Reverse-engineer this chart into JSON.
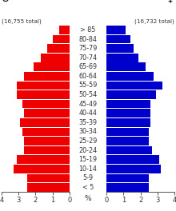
{
  "age_groups": [
    "< 5",
    "5-9",
    "10-14",
    "15-19",
    "20-24",
    "25-29",
    "30-34",
    "35-39",
    "40-44",
    "45-49",
    "50-54",
    "55-59",
    "60-64",
    "65-69",
    "70-74",
    "75-79",
    "80-84",
    "> 85"
  ],
  "male_pct": [
    2.5,
    2.5,
    3.3,
    3.1,
    2.7,
    2.7,
    2.8,
    2.9,
    2.7,
    2.8,
    3.1,
    3.1,
    2.7,
    2.1,
    1.7,
    1.3,
    1.0,
    0.6
  ],
  "female_pct": [
    2.5,
    2.5,
    3.2,
    3.1,
    2.7,
    2.5,
    2.5,
    2.6,
    2.6,
    2.6,
    2.9,
    3.3,
    2.8,
    2.3,
    1.9,
    1.6,
    1.4,
    1.1
  ],
  "male_color": "#ee0000",
  "female_color": "#0000cc",
  "male_symbol": "♂",
  "female_symbol": "♀",
  "male_total": "(16,755 total)",
  "female_total": "(16,732 total)",
  "pct_label": "%",
  "xlim": 4.0,
  "xticks": [
    0,
    1,
    2,
    3,
    4
  ],
  "bg_color": "#ffffff",
  "bar_height": 0.92
}
